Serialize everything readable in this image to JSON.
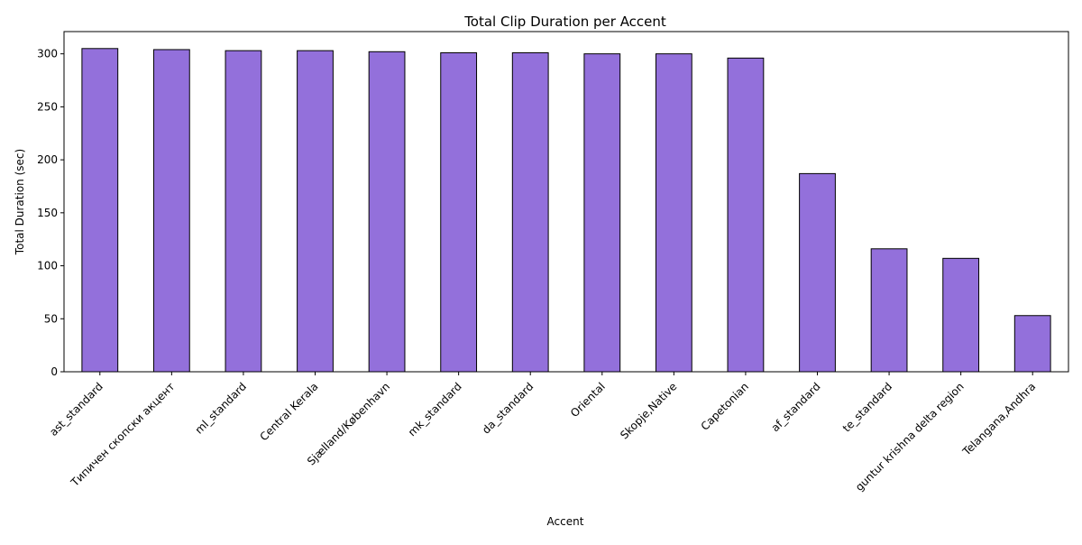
{
  "chart_data": {
    "type": "bar",
    "title": "Total Clip Duration per Accent",
    "xlabel": "Accent",
    "ylabel": "Total Duration (sec)",
    "ylim": [
      0,
      321
    ],
    "yticks": [
      0,
      50,
      100,
      150,
      200,
      250,
      300
    ],
    "grid": false,
    "legend": "none",
    "bar_color": "#9370db",
    "bar_edge_color": "#000000",
    "categories": [
      "ast_standard",
      "Типичен скопски акцент",
      "ml_standard",
      "Central Kerala",
      "Sjælland/København",
      "mk_standard",
      "da_standard",
      "Oriental",
      "Skopje,Native",
      "Capetonian",
      "af_standard",
      "te_standard",
      "guntur krishna delta region",
      "Telangana,Andhra"
    ],
    "values": [
      305,
      304,
      303,
      303,
      302,
      301,
      301,
      300,
      300,
      296,
      187,
      116,
      107,
      53
    ]
  }
}
